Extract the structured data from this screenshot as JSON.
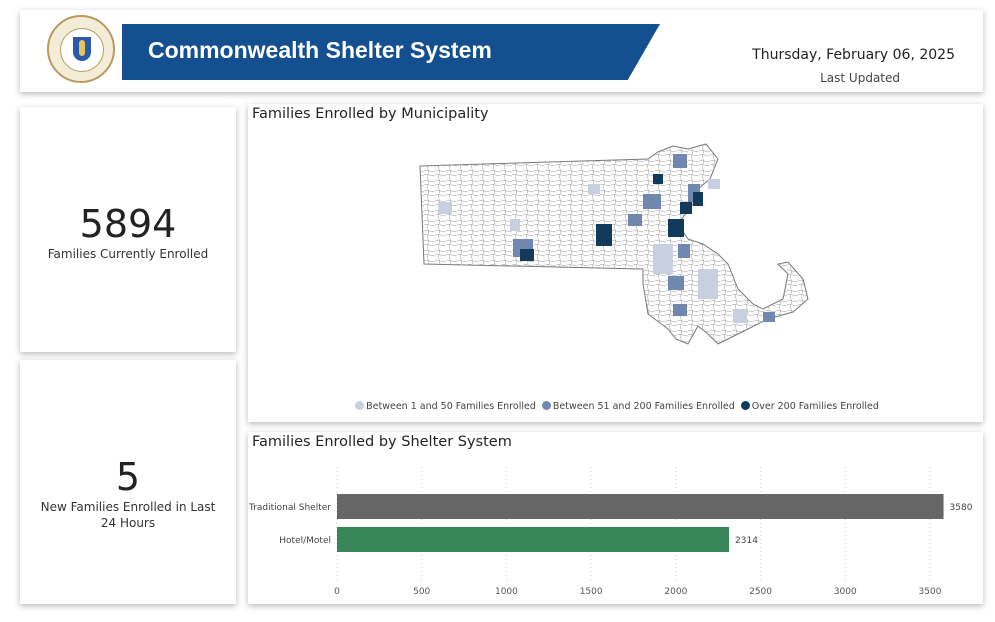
{
  "header": {
    "title": "Commonwealth Shelter System",
    "date": "Thursday, February 06, 2025",
    "last_updated_label": "Last Updated",
    "logo_text": "Seal of the Commonwealth of Massachusetts"
  },
  "kpis": [
    {
      "value": "5894",
      "label": "Families Currently Enrolled"
    },
    {
      "value": "5",
      "label": "New Families Enrolled in Last 24 Hours"
    }
  ],
  "map": {
    "title": "Families Enrolled by Municipality",
    "legend": [
      {
        "label": "Between 1 and 50 Families Enrolled",
        "color": "#c8d0e0"
      },
      {
        "label": "Between 51 and 200 Families Enrolled",
        "color": "#7088b0"
      },
      {
        "label": "Over 200 Families Enrolled",
        "color": "#123a5a"
      }
    ]
  },
  "chart_data": {
    "type": "bar",
    "orientation": "horizontal",
    "title": "Families Enrolled by Shelter System",
    "categories": [
      "Traditional Shelter",
      "Hotel/Motel"
    ],
    "values": [
      3580,
      2314
    ],
    "colors": [
      "#666666",
      "#388557"
    ],
    "xlim": [
      0,
      3600
    ],
    "xticks": [
      0,
      500,
      1000,
      1500,
      2000,
      2500,
      3000,
      3500
    ],
    "grid": true,
    "data_labels": true
  }
}
